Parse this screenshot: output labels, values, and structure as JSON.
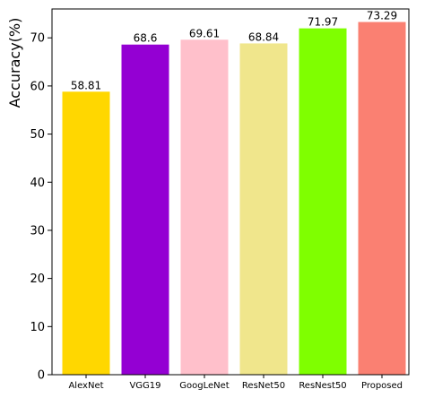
{
  "chart_data": {
    "type": "bar",
    "categories": [
      "AlexNet",
      "VGG19",
      "GoogLeNet",
      "ResNet50",
      "ResNest50",
      "Proposed"
    ],
    "values": [
      58.81,
      68.6,
      69.61,
      68.84,
      71.97,
      73.29
    ],
    "value_labels": [
      "58.81",
      "68.6",
      "69.61",
      "68.84",
      "71.97",
      "73.29"
    ],
    "bar_colors": [
      "#FFD700",
      "#9400D3",
      "#FFC0CB",
      "#F0E68C",
      "#7FFF00",
      "#FA8072"
    ],
    "ylabel": "Accuracy(%)",
    "yticks": [
      0,
      10,
      20,
      30,
      40,
      50,
      60,
      70
    ],
    "ylim": [
      0,
      76
    ],
    "grid": false,
    "legend": "none"
  }
}
